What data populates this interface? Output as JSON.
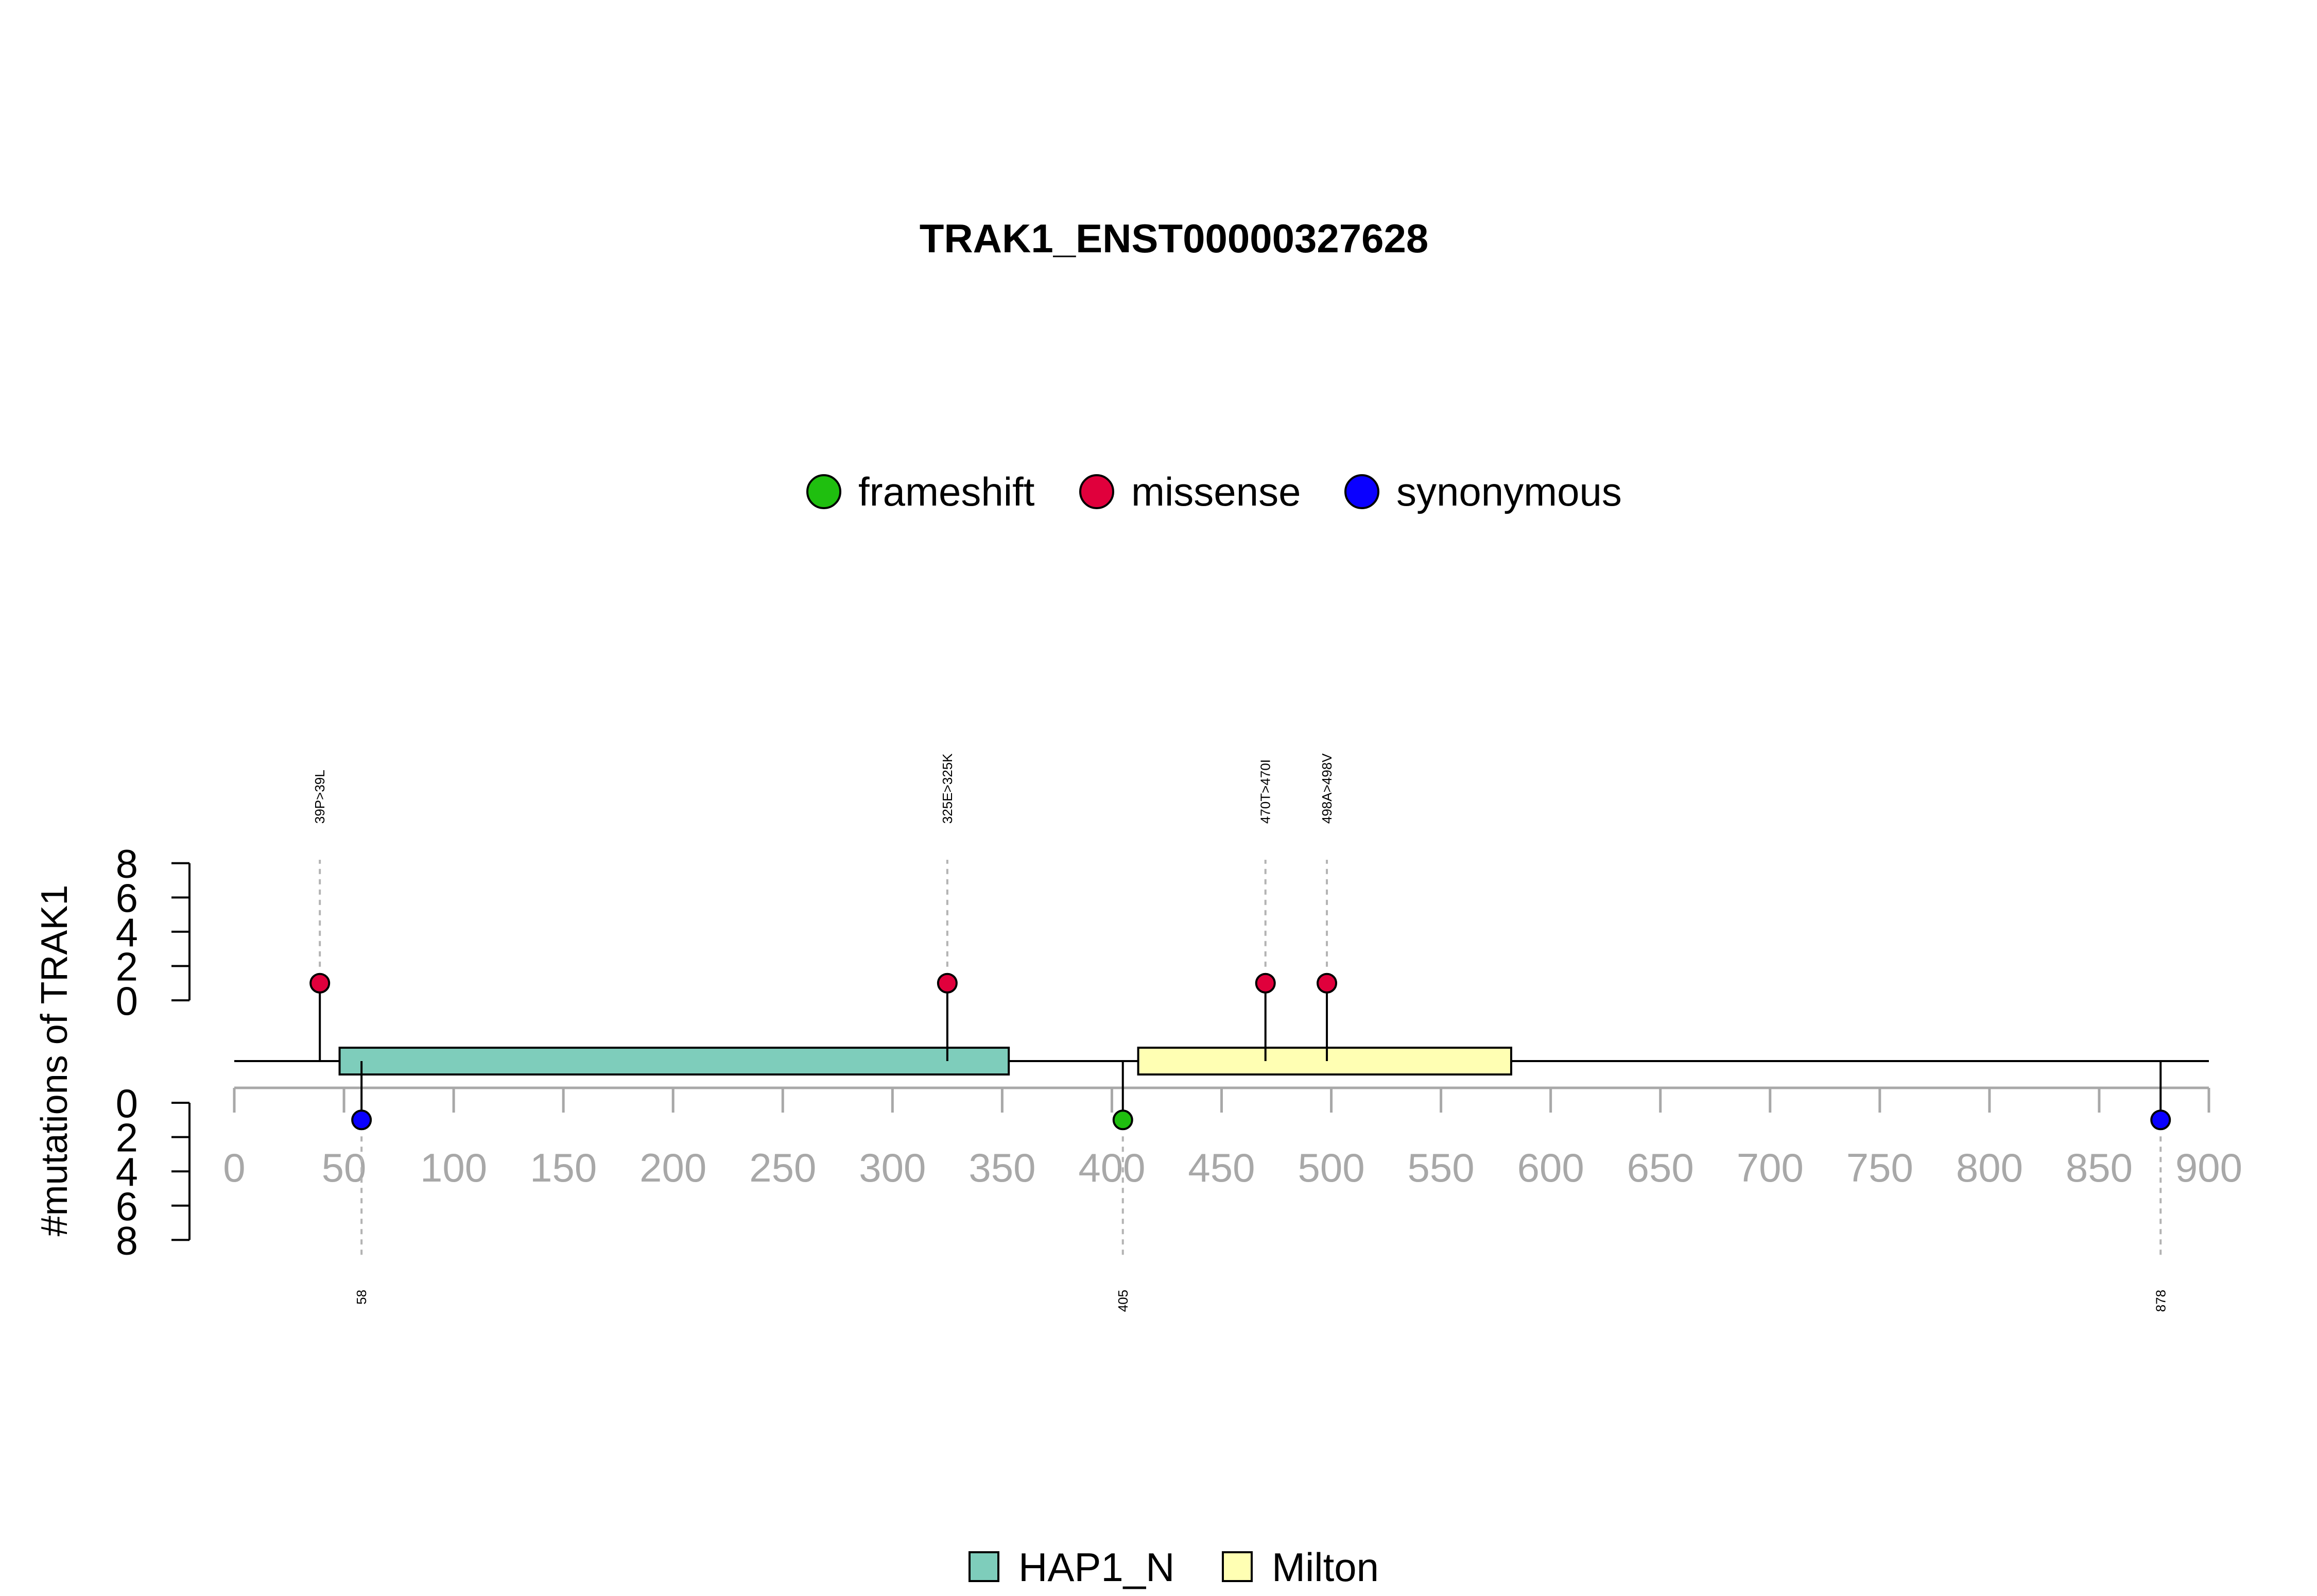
{
  "chart_data": {
    "type": "lollipop",
    "title": "TRAK1_ENST00000327628",
    "ylabel": "#mutations of TRAK1",
    "xlim": [
      0,
      900
    ],
    "x_ticks": [
      0,
      50,
      100,
      150,
      200,
      250,
      300,
      350,
      400,
      450,
      500,
      550,
      600,
      650,
      700,
      750,
      800,
      850,
      900
    ],
    "y_ticks": [
      0,
      2,
      4,
      6,
      8
    ],
    "ylim": [
      0,
      8
    ],
    "mutation_legend": [
      {
        "label": "frameshift",
        "color": "#1fbf0f"
      },
      {
        "label": "missense",
        "color": "#e0003c"
      },
      {
        "label": "synonymous",
        "color": "#0a00ff"
      }
    ],
    "domain_legend": [
      {
        "label": "HAP1_N",
        "color": "#7ecdbb"
      },
      {
        "label": "Milton",
        "color": "#ffffb3"
      }
    ],
    "domains": [
      {
        "name": "HAP1_N",
        "start": 48,
        "end": 353
      },
      {
        "name": "Milton",
        "start": 412,
        "end": 582
      }
    ],
    "protein_length": 900,
    "mutations_top": [
      {
        "position": 39,
        "count": 1,
        "type": "missense",
        "label": "39P>39L"
      },
      {
        "position": 325,
        "count": 1,
        "type": "missense",
        "label": "325E>325K"
      },
      {
        "position": 470,
        "count": 1,
        "type": "missense",
        "label": "470T>470I"
      },
      {
        "position": 498,
        "count": 1,
        "type": "missense",
        "label": "498A>498V"
      }
    ],
    "mutations_bottom": [
      {
        "position": 58,
        "count": 1,
        "type": "synonymous",
        "label": "58"
      },
      {
        "position": 405,
        "count": 1,
        "type": "frameshift",
        "label": "405"
      },
      {
        "position": 878,
        "count": 1,
        "type": "synonymous",
        "label": "878"
      }
    ]
  }
}
